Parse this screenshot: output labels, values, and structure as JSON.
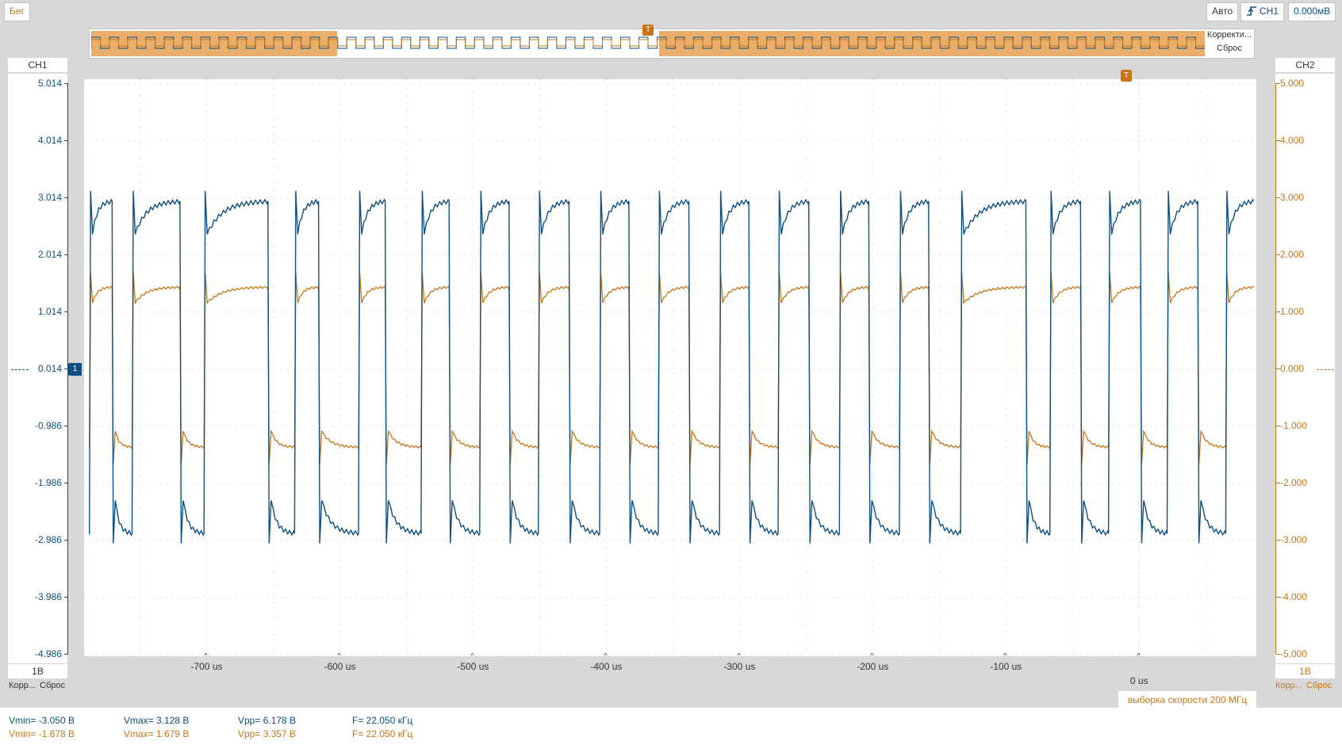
{
  "top": {
    "run_state": "Бег",
    "mode": "Авто",
    "trigger_source": "CH1",
    "trigger_level": "0.000мВ"
  },
  "overview": {
    "trigger_marker": "T",
    "correct_label": "Корректи...",
    "reset_label": "Сброс"
  },
  "ch1_panel": {
    "title": "CH1",
    "scale": "1В",
    "correct_label": "Корр...",
    "reset_label": "Сброс",
    "ticks": [
      "5.014",
      "4.014",
      "3.014",
      "2.014",
      "1.014",
      "0.014",
      "-0.986",
      "-1.986",
      "-2.986",
      "-3.986",
      "-4.986"
    ]
  },
  "ch2_panel": {
    "title": "CH2",
    "scale": "1В",
    "correct_label": "Корр...",
    "reset_label": "Сброс",
    "ticks": [
      "5.000",
      "4.000",
      "3.000",
      "2.000",
      "1.000",
      "0.000",
      "-1.000",
      "-2.000",
      "-3.000",
      "-4.000",
      "-5.000"
    ]
  },
  "x_axis": {
    "ticks": [
      "-700 us",
      "-600 us",
      "-500 us",
      "-400 us",
      "-300 us",
      "-200 us",
      "-100 us",
      "0 us"
    ]
  },
  "trigger_marker": "T",
  "sample_rate": "выборка скорости 200 МГц",
  "measurements": {
    "ch1": {
      "vmin": "Vmin= -3.050 В",
      "vmax": "Vmax= 3.128 В",
      "vpp": "Vpp= 6.178 В",
      "freq": "F= 22.050 кГц"
    },
    "ch2": {
      "vmin": "Vmin= -1.678 В",
      "vmax": "Vmax= 1.679 В",
      "vpp": "Vpp= 3.357 В",
      "freq": "F= 22.050 кГц"
    }
  },
  "colors": {
    "ch1": "#0d4f80",
    "ch2": "#c87414",
    "grid": "#c8c8c8",
    "background": "#d8d8d8"
  },
  "chart_data": {
    "type": "line",
    "x_unit": "us",
    "xlim": [
      -792,
      88
    ],
    "y_left_lim": [
      -4.986,
      5.014
    ],
    "y_right_lim": [
      -5.0,
      5.0
    ],
    "grid": true,
    "frequency_khz": 22.05,
    "series": [
      {
        "name": "CH1",
        "high": 2.95,
        "low": -2.88,
        "overshoot_high": 3.128,
        "overshoot_low": -3.05
      },
      {
        "name": "CH2",
        "high": 1.43,
        "low": -1.38,
        "overshoot_high": 1.679,
        "overshoot_low": -1.678
      }
    ],
    "edges_us": [
      -788,
      -771,
      -756,
      -720,
      -702,
      -654,
      -634,
      -616,
      -586,
      -566,
      -539,
      -518,
      -495,
      -473,
      -451,
      -428,
      -405,
      -383,
      -361,
      -338,
      -315,
      -293,
      -271,
      -248,
      -225,
      -203,
      -180,
      -158,
      -134,
      -85,
      -67,
      -44,
      -23,
      1,
      21,
      44,
      65
    ]
  }
}
